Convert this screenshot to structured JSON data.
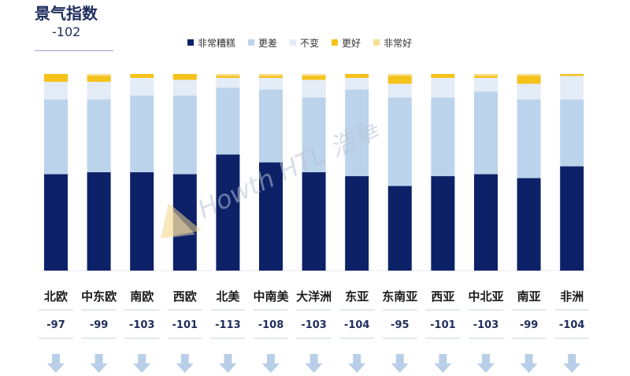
{
  "header": {
    "title": "景气指数",
    "index": "-102"
  },
  "watermark": {
    "text": "Howth HTL 浩華"
  },
  "colors": {
    "very_bad": "#0c2168",
    "worse": "#bcd3ec",
    "same": "#e3ecf7",
    "better": "#f5c21a",
    "very_good": "#f7df8e",
    "arrow": "#b9cee8",
    "label": "#1a1a1a",
    "value": "#1e2d5c"
  },
  "chart_data": {
    "type": "bar",
    "stacked": true,
    "normalized_percent": true,
    "legend_position": "top",
    "categories": [
      "北欧",
      "中东欧",
      "南欧",
      "西欧",
      "北美",
      "中南美",
      "大洋洲",
      "东亚",
      "东南亚",
      "西亚",
      "中北亚",
      "南亚",
      "非洲"
    ],
    "series": [
      {
        "name": "非常糟糕",
        "values": [
          49,
          50,
          50,
          49,
          59,
          55,
          50,
          48,
          43,
          48,
          49,
          47,
          53
        ]
      },
      {
        "name": "更差",
        "values": [
          38,
          37,
          39,
          40,
          34,
          37,
          38,
          44,
          45,
          40,
          42,
          40,
          34
        ]
      },
      {
        "name": "不变",
        "values": [
          9,
          9,
          9,
          8,
          5,
          6,
          9,
          6,
          7,
          10,
          7,
          8,
          12
        ]
      },
      {
        "name": "更好",
        "values": [
          4,
          3,
          2,
          3,
          1,
          1,
          2,
          2,
          4,
          2,
          1,
          4,
          1
        ]
      },
      {
        "name": "非常好",
        "values": [
          0,
          1,
          0,
          0,
          1,
          1,
          1,
          0,
          1,
          0,
          1,
          1,
          0
        ]
      }
    ],
    "index_values": [
      "-97",
      "-99",
      "-103",
      "-101",
      "-113",
      "-108",
      "-103",
      "-104",
      "-95",
      "-101",
      "-103",
      "-99",
      "-104"
    ],
    "ylim": [
      0,
      100
    ]
  }
}
